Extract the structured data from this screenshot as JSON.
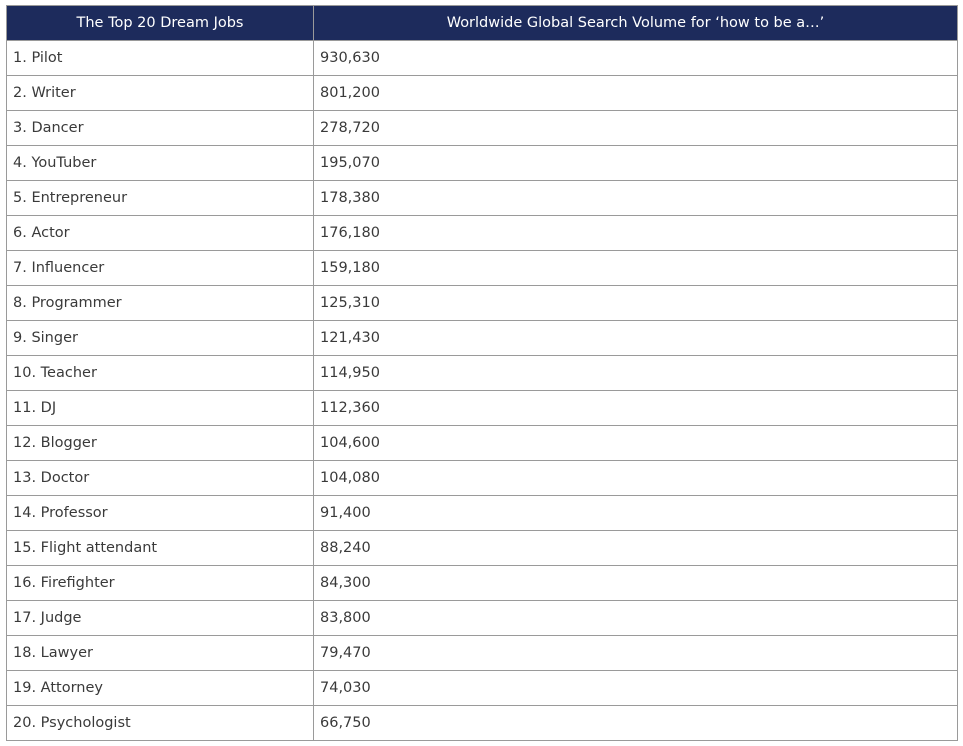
{
  "table": {
    "headers": [
      "The Top 20 Dream Jobs",
      "Worldwide Global Search Volume for ‘how to be a…’"
    ],
    "rows": [
      [
        "1. Pilot",
        "930,630"
      ],
      [
        "2. Writer",
        "801,200"
      ],
      [
        "3. Dancer",
        "278,720"
      ],
      [
        "4. YouTuber",
        "195,070"
      ],
      [
        "5. Entrepreneur",
        "178,380"
      ],
      [
        "6. Actor",
        "176,180"
      ],
      [
        "7. Influencer",
        "159,180"
      ],
      [
        "8. Programmer",
        "125,310"
      ],
      [
        "9. Singer",
        "121,430"
      ],
      [
        "10. Teacher",
        "114,950"
      ],
      [
        "11. DJ",
        "112,360"
      ],
      [
        "12. Blogger",
        "104,600"
      ],
      [
        "13. Doctor",
        "104,080"
      ],
      [
        "14. Professor",
        "91,400"
      ],
      [
        "15. Flight attendant",
        "88,240"
      ],
      [
        "16. Firefighter",
        "84,300"
      ],
      [
        "17. Judge",
        "83,800"
      ],
      [
        "18. Lawyer",
        "79,470"
      ],
      [
        "19. Attorney",
        "74,030"
      ],
      [
        "20. Psychologist",
        "66,750"
      ]
    ]
  },
  "colors": {
    "header_background": "#1d2b5c",
    "header_text": "#ffffff",
    "cell_text": "#3a3a3a",
    "border": "#9a9a9a"
  }
}
